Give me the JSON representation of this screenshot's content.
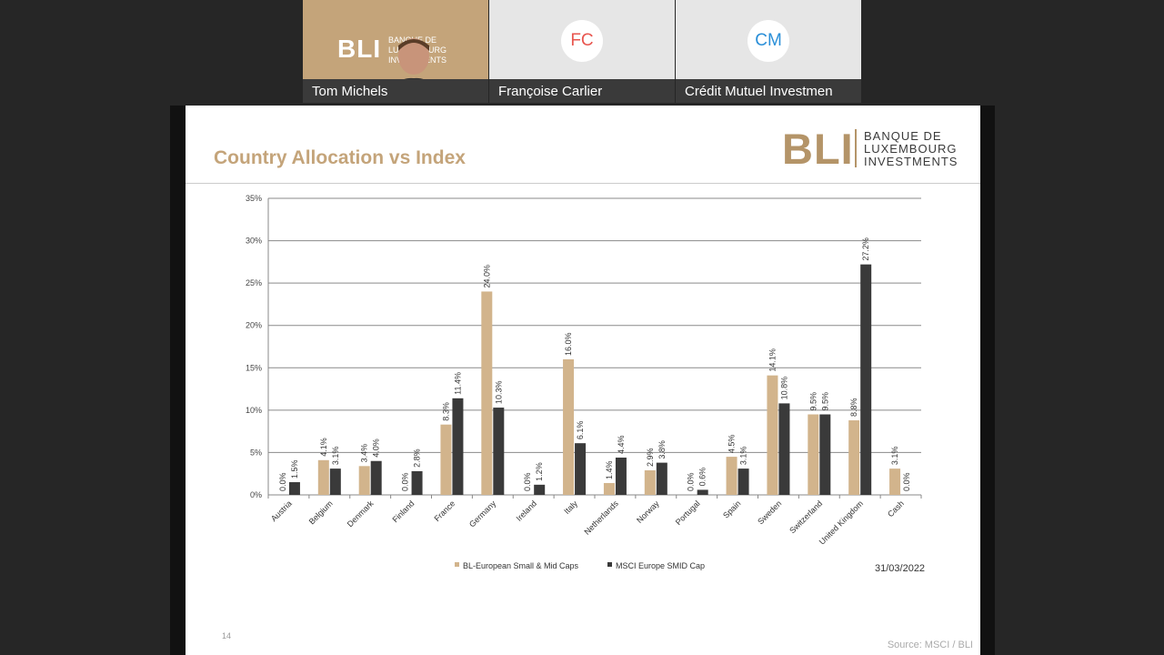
{
  "participants": [
    {
      "name": "Tom Michels",
      "logo": "BLI",
      "logo_sub": [
        "BANQUE DE",
        "LUXEMBOURG",
        "INVESTMENTS"
      ]
    },
    {
      "name": "Françoise Carlier",
      "initials": "FC",
      "color": "#e8554e"
    },
    {
      "name": "Crédit Mutuel Investmen",
      "initials": "CM",
      "color": "#2a8fd8"
    }
  ],
  "slide": {
    "title": "Country Allocation vs Index",
    "logo_mark": "BLI",
    "logo_lines": [
      "BANQUE DE",
      "LUXEMBOURG",
      "INVESTMENTS"
    ],
    "date": "31/03/2022",
    "page_number": "14",
    "source": "Source: MSCI / BLI"
  },
  "chart_data": {
    "type": "bar",
    "categories": [
      "Austria",
      "Belgium",
      "Denmark",
      "Finland",
      "France",
      "Germany",
      "Ireland",
      "Italy",
      "Netherlands",
      "Norway",
      "Portugal",
      "Spain",
      "Sweden",
      "Switzerland",
      "United Kingdom",
      "Cash"
    ],
    "series": [
      {
        "name": "BL-European Small & Mid Caps",
        "color": "#d2b48c",
        "values": [
          0.0,
          4.1,
          3.4,
          0.0,
          8.3,
          24.0,
          0.0,
          16.0,
          1.4,
          2.9,
          0.0,
          4.5,
          14.1,
          9.5,
          8.8,
          3.1
        ]
      },
      {
        "name": "MSCI Europe SMID Cap",
        "color": "#3a3a3a",
        "values": [
          1.5,
          3.1,
          4.0,
          2.8,
          11.4,
          10.3,
          1.2,
          6.1,
          4.4,
          3.8,
          0.6,
          3.1,
          10.8,
          9.5,
          27.2,
          0.0
        ]
      }
    ],
    "yticks": [
      "0%",
      "5%",
      "10%",
      "15%",
      "20%",
      "25%",
      "30%",
      "35%"
    ],
    "ylim": [
      0,
      35
    ],
    "grid": true,
    "legend_position": "bottom"
  }
}
